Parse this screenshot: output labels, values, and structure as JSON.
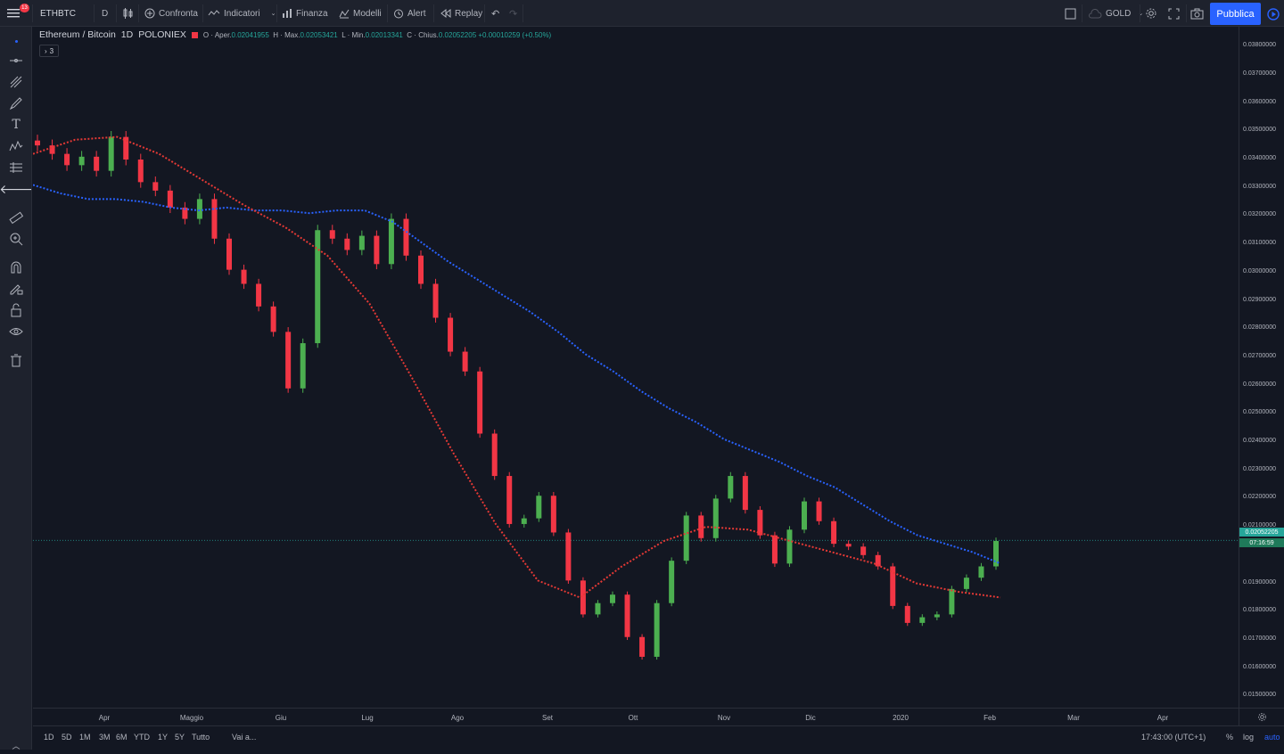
{
  "topbar": {
    "notif_count": "13",
    "symbol": "ETHBTC",
    "interval": "D",
    "compare": "Confronta",
    "indicators": "Indicatori",
    "finance": "Finanza",
    "templates": "Modelli",
    "alert": "Alert",
    "replay": "Replay",
    "account": "GOLD",
    "publish": "Pubblica"
  },
  "legend": {
    "title": "Ethereum / Bitcoin",
    "interval": "1D",
    "exchange": "POLONIEX",
    "o_label": "O",
    "open_label": "Aper.",
    "open": "0.02041955",
    "h_label": "H",
    "high_label": "Max.",
    "high": "0.02053421",
    "l_label": "L",
    "low_label": "Min.",
    "low": "0.02013341",
    "c_label": "C",
    "close_label": "Chius.",
    "close": "0.02052205",
    "change": "+0.00010259 (+0.50%)",
    "indicators_collapsed": "3"
  },
  "price_axis": {
    "labels": [
      "0.03800000",
      "0.03700000",
      "0.03600000",
      "0.03500000",
      "0.03400000",
      "0.03300000",
      "0.03200000",
      "0.03100000",
      "0.03000000",
      "0.02900000",
      "0.02800000",
      "0.02700000",
      "0.02600000",
      "0.02500000",
      "0.02400000",
      "0.02300000",
      "0.02200000",
      "0.02100000",
      "0.01900000",
      "0.01800000",
      "0.01700000",
      "0.01600000",
      "0.01500000"
    ],
    "current_price": "0.02052205",
    "countdown": "07:16:59"
  },
  "time_axis": {
    "labels": [
      "Apr",
      "Maggio",
      "Giu",
      "Lug",
      "Ago",
      "Set",
      "Ott",
      "Nov",
      "Dic",
      "2020",
      "Feb",
      "Mar",
      "Apr"
    ]
  },
  "bottombar": {
    "ranges": [
      "1D",
      "5D",
      "1M",
      "3M",
      "6M",
      "YTD",
      "1Y",
      "5Y",
      "Tutto"
    ],
    "goto": "Vai a...",
    "clock": "17:43:00 (UTC+1)",
    "percent": "%",
    "log": "log",
    "auto": "auto"
  },
  "colors": {
    "background": "#131722",
    "up": "#26a69a",
    "candle_up": "#4caf50",
    "down": "#f23645",
    "blue_ma": "#2962ff",
    "red_ma": "#e53935",
    "accent": "#2962ff"
  },
  "chart_data": {
    "type": "candlestick",
    "symbol": "ETHBTC",
    "x_range": [
      "2019-03-15",
      "2020-04-20"
    ],
    "y_range": [
      0.0146,
      0.0387
    ],
    "closes": [
      0.0345,
      0.0342,
      0.0338,
      0.0341,
      0.0336,
      0.0348,
      0.034,
      0.0332,
      0.0329,
      0.0323,
      0.0319,
      0.0326,
      0.0312,
      0.0301,
      0.0296,
      0.0288,
      0.0279,
      0.0259,
      0.0275,
      0.0315,
      0.0312,
      0.0308,
      0.0313,
      0.0303,
      0.0319,
      0.0306,
      0.0296,
      0.0284,
      0.0272,
      0.0265,
      0.0243,
      0.0228,
      0.0211,
      0.0213,
      0.0221,
      0.0208,
      0.0191,
      0.0179,
      0.0183,
      0.0186,
      0.0171,
      0.0164,
      0.0183,
      0.0198,
      0.0214,
      0.0206,
      0.022,
      0.0228,
      0.0216,
      0.0207,
      0.0197,
      0.0209,
      0.0219,
      0.0212,
      0.0204,
      0.0203,
      0.02,
      0.0196,
      0.0182,
      0.0176,
      0.0178,
      0.0179,
      0.0188,
      0.0192,
      0.0196,
      0.0205
    ],
    "series": [
      {
        "name": "blue",
        "values": [
          0.0331,
          0.0328,
          0.0326,
          0.0326,
          0.0325,
          0.0323,
          0.0322,
          0.0323,
          0.0322,
          0.0322,
          0.0321,
          0.0322,
          0.0322,
          0.0318,
          0.0311,
          0.0304,
          0.0298,
          0.0292,
          0.0286,
          0.0279,
          0.0271,
          0.0265,
          0.0258,
          0.0252,
          0.0247,
          0.0241,
          0.0237,
          0.0233,
          0.0228,
          0.0224,
          0.0218,
          0.0212,
          0.0207,
          0.0204,
          0.0201,
          0.0197
        ]
      },
      {
        "name": "red",
        "values": [
          0.0342,
          0.0347,
          0.0348,
          0.0342,
          0.0333,
          0.0324,
          0.0316,
          0.0306,
          0.0289,
          0.0263,
          0.0236,
          0.0211,
          0.0191,
          0.0185,
          0.0196,
          0.0205,
          0.021,
          0.0209,
          0.0205,
          0.0201,
          0.0197,
          0.019,
          0.0187,
          0.0185
        ]
      }
    ]
  }
}
